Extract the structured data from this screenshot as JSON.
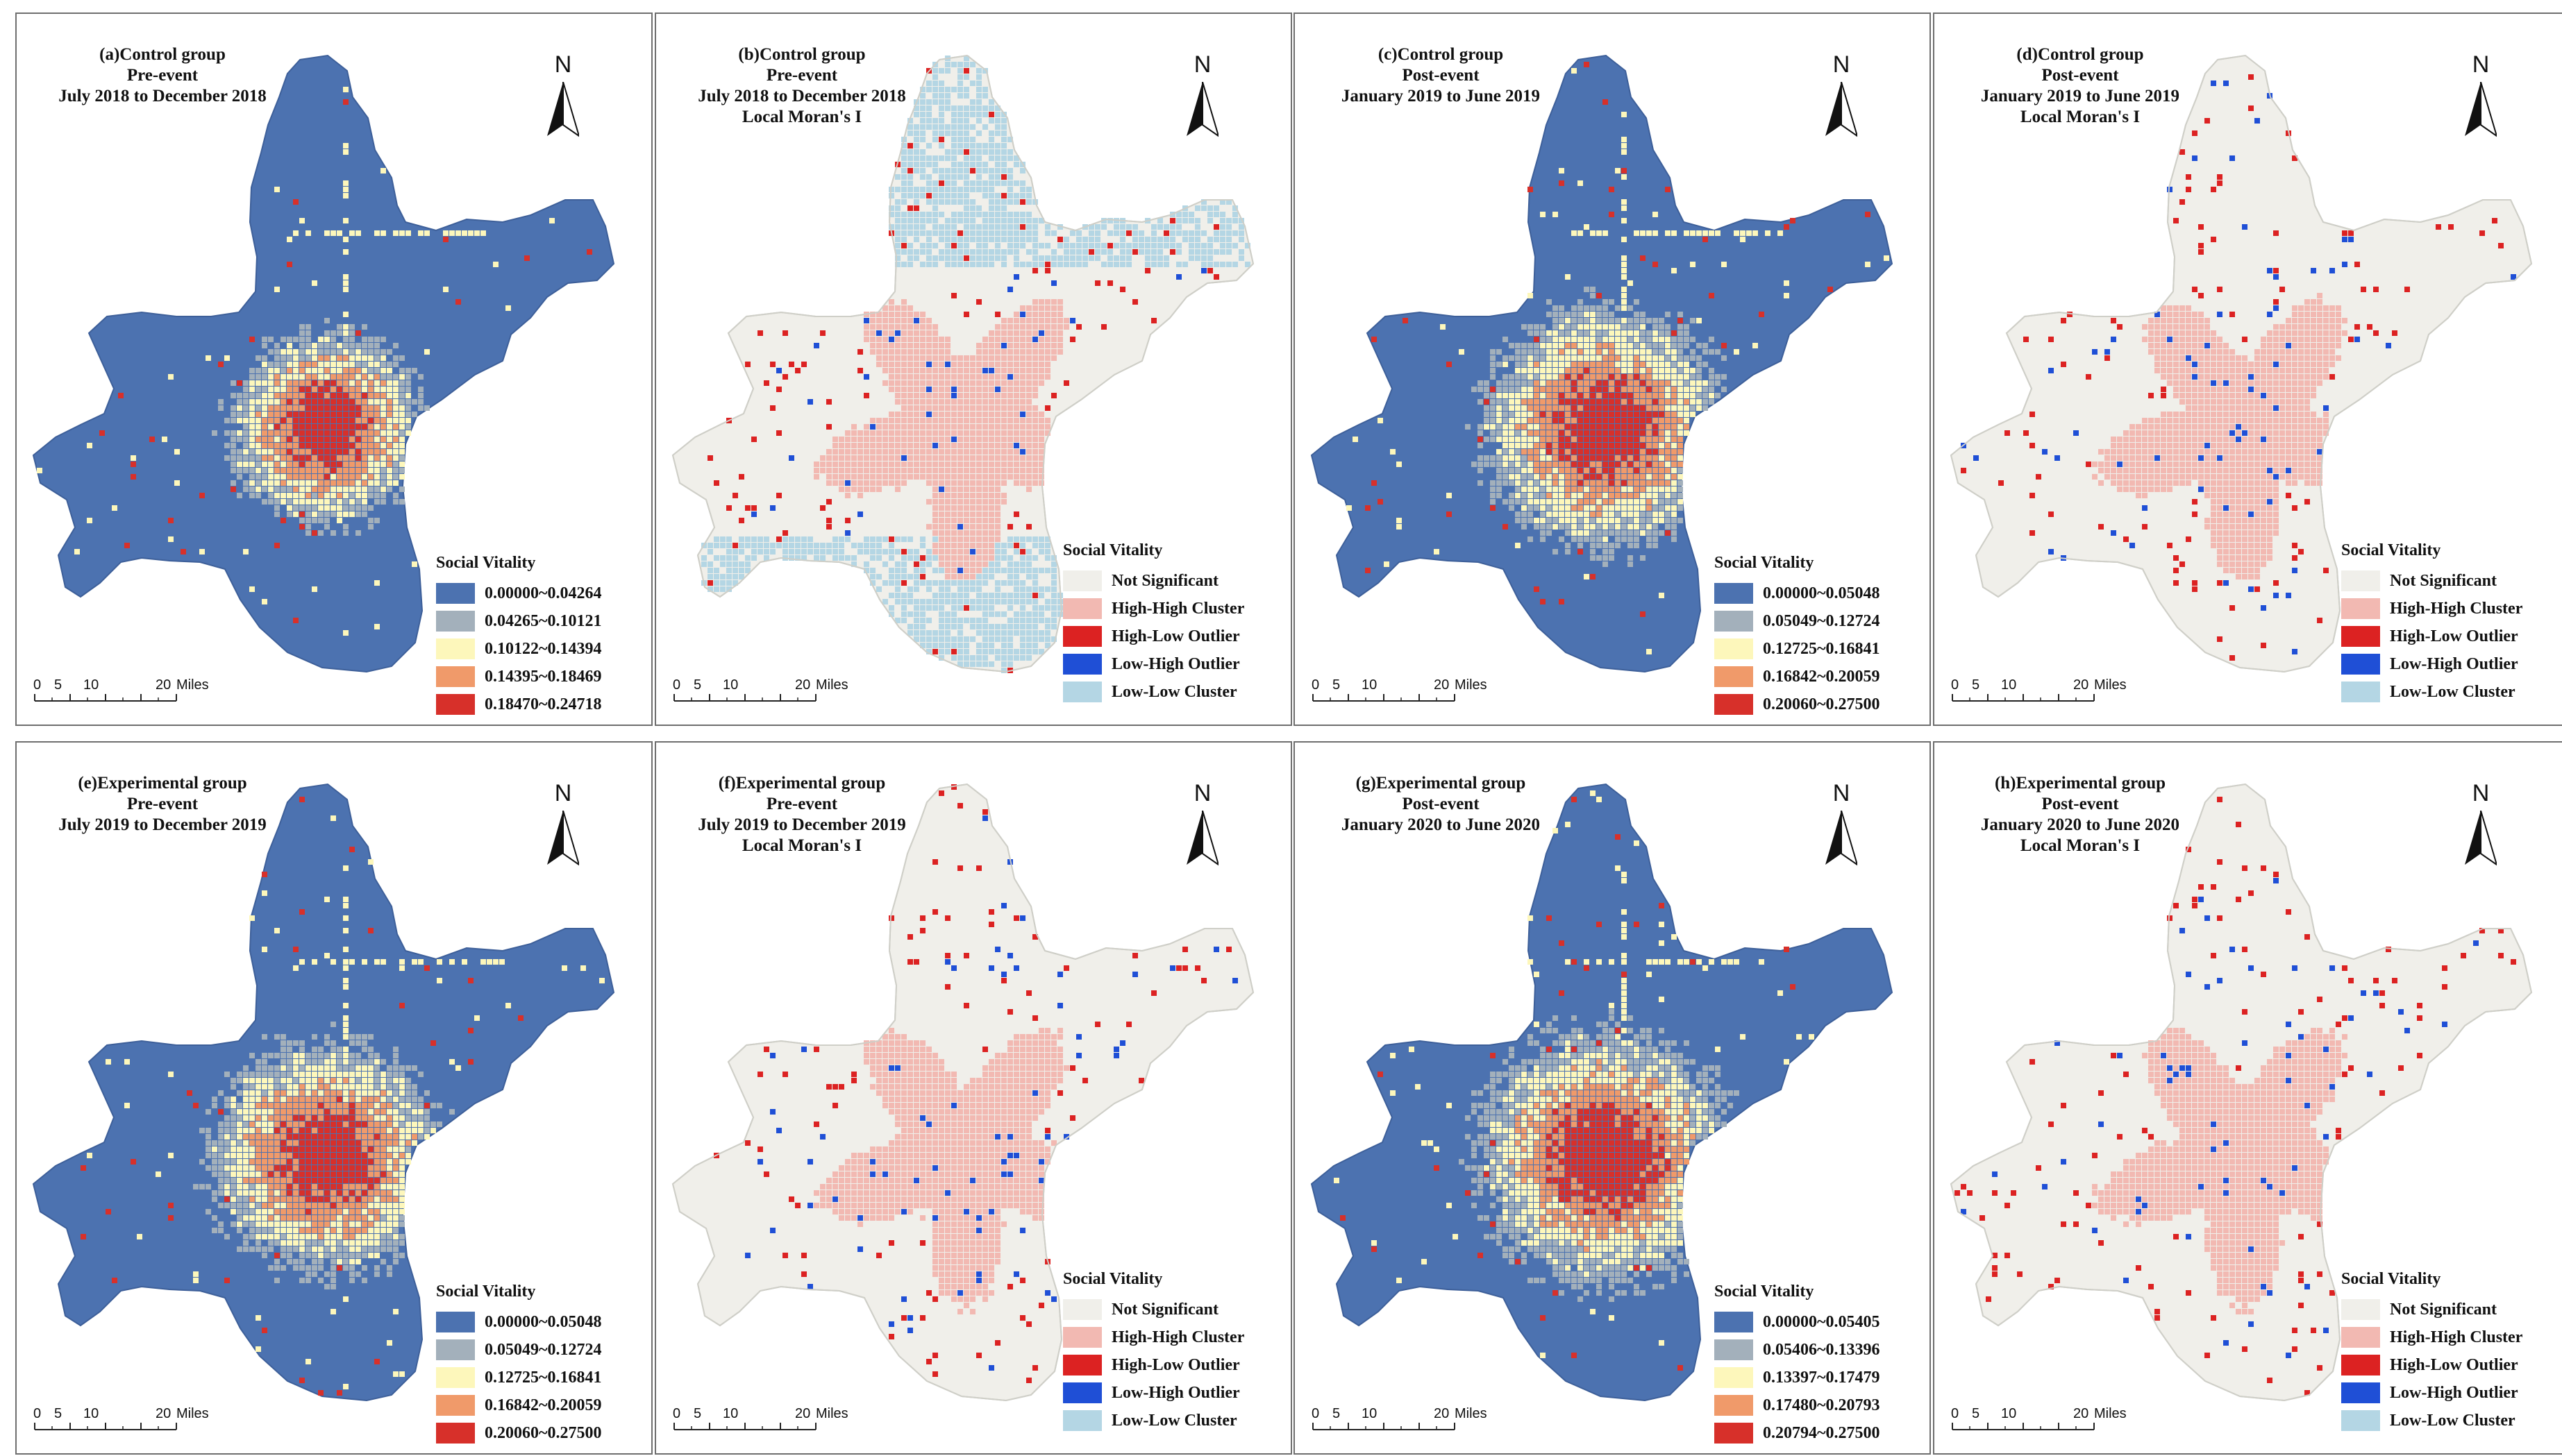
{
  "scale": {
    "ticks": [
      "0",
      "5",
      "10",
      "20"
    ],
    "unit": "Miles"
  },
  "north_label": "N",
  "legend_title": "Social Vitality",
  "colors": {
    "bg_cell": "#f0efea",
    "seq": [
      "#4c72b0",
      "#a3b0bb",
      "#fdf7bb",
      "#f09a6a",
      "#d7302a"
    ],
    "lisa": [
      "#f0efea",
      "#f2b9b2",
      "#dc2222",
      "#1f4fd6",
      "#b4d6e4"
    ]
  },
  "panels": [
    {
      "id": "a",
      "kind": "seq",
      "title": [
        "(a)Control group",
        "Pre-event",
        "July 2018 to December 2018"
      ],
      "legend": [
        "0.00000~0.04264",
        "0.04265~0.10121",
        "0.10122~0.14394",
        "0.14395~0.18469",
        "0.18470~0.24718"
      ]
    },
    {
      "id": "b",
      "kind": "lisa",
      "title": [
        "(b)Control group",
        "Pre-event",
        "July 2018 to December 2018",
        "Local Moran's I"
      ],
      "legend": [
        "Not Significant",
        "High-High Cluster",
        "High-Low Outlier",
        "Low-High Outlier",
        "Low-Low Cluster"
      ]
    },
    {
      "id": "c",
      "kind": "seq",
      "title": [
        "(c)Control group",
        "Post-event",
        "January 2019 to June 2019"
      ],
      "legend": [
        "0.00000~0.05048",
        "0.05049~0.12724",
        "0.12725~0.16841",
        "0.16842~0.20059",
        "0.20060~0.27500"
      ]
    },
    {
      "id": "d",
      "kind": "lisa",
      "title": [
        "(d)Control group",
        "Post-event",
        "January 2019 to June 2019",
        "Local Moran's I"
      ],
      "legend": [
        "Not Significant",
        "High-High Cluster",
        "High-Low Outlier",
        "Low-High Outlier",
        "Low-Low Cluster"
      ]
    },
    {
      "id": "e",
      "kind": "seq",
      "title": [
        "(e)Experimental group",
        "Pre-event",
        "July 2019 to December 2019"
      ],
      "legend": [
        "0.00000~0.05048",
        "0.05049~0.12724",
        "0.12725~0.16841",
        "0.16842~0.20059",
        "0.20060~0.27500"
      ]
    },
    {
      "id": "f",
      "kind": "lisa",
      "title": [
        "(f)Experimental group",
        "Pre-event",
        "July 2019 to December 2019",
        "Local Moran's I"
      ],
      "legend": [
        "Not Significant",
        "High-High Cluster",
        "High-Low Outlier",
        "Low-High Outlier",
        "Low-Low Cluster"
      ]
    },
    {
      "id": "g",
      "kind": "seq",
      "title": [
        "(g)Experimental group",
        "Post-event",
        "January 2020 to June 2020"
      ],
      "legend": [
        "0.00000~0.05405",
        "0.05406~0.13396",
        "0.13397~0.17479",
        "0.17480~0.20793",
        "0.20794~0.27500"
      ]
    },
    {
      "id": "h",
      "kind": "lisa",
      "title": [
        "(h)Experimental group",
        "Post-event",
        "January 2020 to June 2020",
        "Local Moran's I"
      ],
      "legend": [
        "Not Significant",
        "High-High Cluster",
        "High-Low Outlier",
        "Low-High Outlier",
        "Low-Low Cluster"
      ]
    }
  ]
}
